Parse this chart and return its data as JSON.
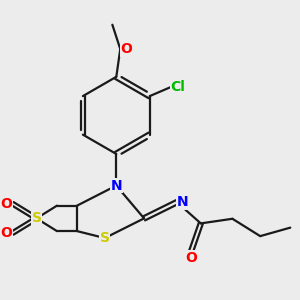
{
  "background_color": "#ececec",
  "bond_color": "#1a1a1a",
  "heteroatom_colors": {
    "N": "#0000ff",
    "O": "#ff0000",
    "S": "#cccc00",
    "Cl": "#00bb00"
  },
  "figsize": [
    3.0,
    3.0
  ],
  "dpi": 100,
  "bond_lw": 1.6,
  "font_size": 10
}
